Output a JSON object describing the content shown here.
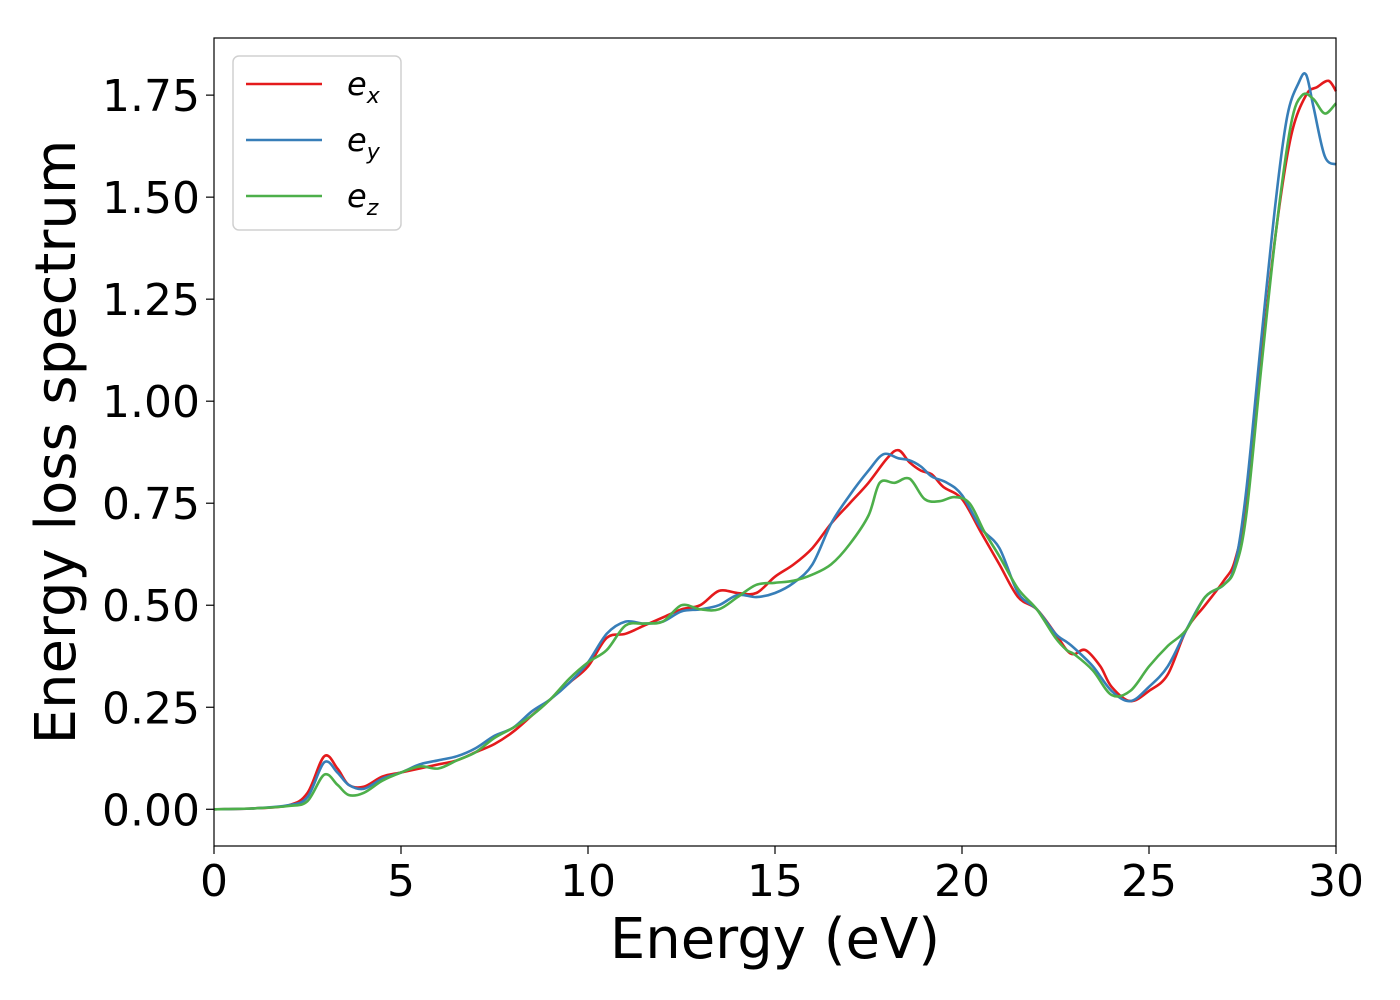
{
  "chart_data": {
    "type": "line",
    "title": "",
    "xlabel": "Energy (eV)",
    "ylabel": "Energy loss spectrum",
    "xlim": [
      0,
      30
    ],
    "ylim": [
      -0.09,
      1.89
    ],
    "xticks": [
      0,
      5,
      10,
      15,
      20,
      25,
      30
    ],
    "xtick_labels": [
      "0",
      "5",
      "10",
      "15",
      "20",
      "25",
      "30"
    ],
    "yticks": [
      0.0,
      0.25,
      0.5,
      0.75,
      1.0,
      1.25,
      1.5,
      1.75
    ],
    "ytick_labels": [
      "0.00",
      "0.25",
      "0.50",
      "0.75",
      "1.00",
      "1.25",
      "1.50",
      "1.75"
    ],
    "grid": false,
    "legend_position": "top-left",
    "series": [
      {
        "name_base": "e",
        "name_sub": "x",
        "color": "#e41a1c",
        "points": [
          [
            0,
            0
          ],
          [
            1,
            0.002
          ],
          [
            2,
            0.01
          ],
          [
            2.5,
            0.04
          ],
          [
            2.95,
            0.13
          ],
          [
            3.3,
            0.1
          ],
          [
            3.6,
            0.06
          ],
          [
            4,
            0.055
          ],
          [
            4.5,
            0.08
          ],
          [
            5,
            0.09
          ],
          [
            5.5,
            0.1
          ],
          [
            6,
            0.11
          ],
          [
            6.5,
            0.12
          ],
          [
            7,
            0.14
          ],
          [
            7.5,
            0.16
          ],
          [
            8,
            0.19
          ],
          [
            8.5,
            0.23
          ],
          [
            9,
            0.27
          ],
          [
            9.5,
            0.31
          ],
          [
            10,
            0.35
          ],
          [
            10.5,
            0.42
          ],
          [
            11,
            0.43
          ],
          [
            11.5,
            0.45
          ],
          [
            12,
            0.47
          ],
          [
            12.5,
            0.49
          ],
          [
            13,
            0.5
          ],
          [
            13.5,
            0.535
          ],
          [
            14,
            0.53
          ],
          [
            14.5,
            0.53
          ],
          [
            15,
            0.57
          ],
          [
            15.5,
            0.6
          ],
          [
            16,
            0.64
          ],
          [
            16.5,
            0.7
          ],
          [
            17,
            0.75
          ],
          [
            17.5,
            0.8
          ],
          [
            18,
            0.86
          ],
          [
            18.3,
            0.88
          ],
          [
            18.6,
            0.85
          ],
          [
            18.9,
            0.83
          ],
          [
            19.2,
            0.82
          ],
          [
            19.5,
            0.79
          ],
          [
            20,
            0.76
          ],
          [
            20.5,
            0.68
          ],
          [
            21,
            0.6
          ],
          [
            21.5,
            0.52
          ],
          [
            22,
            0.49
          ],
          [
            22.5,
            0.43
          ],
          [
            22.8,
            0.39
          ],
          [
            23,
            0.38
          ],
          [
            23.3,
            0.39
          ],
          [
            23.7,
            0.35
          ],
          [
            24,
            0.3
          ],
          [
            24.5,
            0.265
          ],
          [
            25,
            0.29
          ],
          [
            25.5,
            0.33
          ],
          [
            26,
            0.44
          ],
          [
            26.5,
            0.5
          ],
          [
            27,
            0.56
          ],
          [
            27.3,
            0.61
          ],
          [
            27.6,
            0.75
          ],
          [
            28,
            1.1
          ],
          [
            28.4,
            1.42
          ],
          [
            28.8,
            1.65
          ],
          [
            29.2,
            1.75
          ],
          [
            29.5,
            1.77
          ],
          [
            29.8,
            1.785
          ],
          [
            30,
            1.76
          ]
        ]
      },
      {
        "name_base": "e",
        "name_sub": "y",
        "color": "#377eb8",
        "points": [
          [
            0,
            0
          ],
          [
            1,
            0.002
          ],
          [
            2,
            0.01
          ],
          [
            2.5,
            0.03
          ],
          [
            2.95,
            0.115
          ],
          [
            3.3,
            0.09
          ],
          [
            3.6,
            0.06
          ],
          [
            4,
            0.05
          ],
          [
            4.5,
            0.075
          ],
          [
            5,
            0.09
          ],
          [
            5.5,
            0.11
          ],
          [
            6,
            0.12
          ],
          [
            6.5,
            0.13
          ],
          [
            7,
            0.15
          ],
          [
            7.5,
            0.18
          ],
          [
            8,
            0.2
          ],
          [
            8.5,
            0.24
          ],
          [
            9,
            0.27
          ],
          [
            9.5,
            0.31
          ],
          [
            10,
            0.36
          ],
          [
            10.5,
            0.43
          ],
          [
            11,
            0.46
          ],
          [
            11.5,
            0.455
          ],
          [
            12,
            0.46
          ],
          [
            12.5,
            0.485
          ],
          [
            13,
            0.49
          ],
          [
            13.5,
            0.5
          ],
          [
            14,
            0.525
          ],
          [
            14.5,
            0.52
          ],
          [
            15,
            0.53
          ],
          [
            15.5,
            0.555
          ],
          [
            16,
            0.6
          ],
          [
            16.5,
            0.7
          ],
          [
            17,
            0.77
          ],
          [
            17.5,
            0.83
          ],
          [
            17.9,
            0.87
          ],
          [
            18.3,
            0.86
          ],
          [
            18.6,
            0.855
          ],
          [
            18.9,
            0.84
          ],
          [
            19.2,
            0.815
          ],
          [
            19.6,
            0.8
          ],
          [
            20,
            0.77
          ],
          [
            20.5,
            0.69
          ],
          [
            21,
            0.64
          ],
          [
            21.5,
            0.53
          ],
          [
            22,
            0.49
          ],
          [
            22.5,
            0.43
          ],
          [
            22.8,
            0.41
          ],
          [
            23,
            0.395
          ],
          [
            23.5,
            0.35
          ],
          [
            24,
            0.29
          ],
          [
            24.5,
            0.265
          ],
          [
            25,
            0.3
          ],
          [
            25.5,
            0.35
          ],
          [
            26,
            0.44
          ],
          [
            26.5,
            0.52
          ],
          [
            27,
            0.55
          ],
          [
            27.3,
            0.6
          ],
          [
            27.6,
            0.78
          ],
          [
            28,
            1.15
          ],
          [
            28.4,
            1.5
          ],
          [
            28.7,
            1.7
          ],
          [
            29,
            1.78
          ],
          [
            29.2,
            1.8
          ],
          [
            29.4,
            1.72
          ],
          [
            29.7,
            1.6
          ],
          [
            30,
            1.58
          ]
        ]
      },
      {
        "name_base": "e",
        "name_sub": "z",
        "color": "#4daf4a",
        "points": [
          [
            0,
            0
          ],
          [
            1,
            0.002
          ],
          [
            2,
            0.008
          ],
          [
            2.5,
            0.02
          ],
          [
            2.95,
            0.085
          ],
          [
            3.3,
            0.06
          ],
          [
            3.6,
            0.035
          ],
          [
            4,
            0.04
          ],
          [
            4.5,
            0.07
          ],
          [
            5,
            0.09
          ],
          [
            5.5,
            0.105
          ],
          [
            6,
            0.1
          ],
          [
            6.5,
            0.12
          ],
          [
            7,
            0.14
          ],
          [
            7.5,
            0.175
          ],
          [
            8,
            0.2
          ],
          [
            8.5,
            0.23
          ],
          [
            9,
            0.27
          ],
          [
            9.5,
            0.32
          ],
          [
            10,
            0.36
          ],
          [
            10.5,
            0.39
          ],
          [
            11,
            0.45
          ],
          [
            11.5,
            0.455
          ],
          [
            12,
            0.46
          ],
          [
            12.5,
            0.5
          ],
          [
            13,
            0.49
          ],
          [
            13.5,
            0.49
          ],
          [
            14,
            0.52
          ],
          [
            14.5,
            0.55
          ],
          [
            15,
            0.555
          ],
          [
            15.5,
            0.56
          ],
          [
            16,
            0.575
          ],
          [
            16.5,
            0.6
          ],
          [
            17,
            0.65
          ],
          [
            17.5,
            0.72
          ],
          [
            17.8,
            0.8
          ],
          [
            18.2,
            0.8
          ],
          [
            18.6,
            0.81
          ],
          [
            19,
            0.76
          ],
          [
            19.4,
            0.755
          ],
          [
            19.8,
            0.765
          ],
          [
            20.2,
            0.75
          ],
          [
            20.6,
            0.68
          ],
          [
            21,
            0.62
          ],
          [
            21.5,
            0.54
          ],
          [
            22,
            0.49
          ],
          [
            22.5,
            0.42
          ],
          [
            22.8,
            0.39
          ],
          [
            23,
            0.38
          ],
          [
            23.5,
            0.34
          ],
          [
            24,
            0.28
          ],
          [
            24.5,
            0.29
          ],
          [
            25,
            0.35
          ],
          [
            25.5,
            0.4
          ],
          [
            26,
            0.44
          ],
          [
            26.5,
            0.52
          ],
          [
            27,
            0.55
          ],
          [
            27.3,
            0.59
          ],
          [
            27.6,
            0.72
          ],
          [
            28,
            1.08
          ],
          [
            28.4,
            1.42
          ],
          [
            28.8,
            1.68
          ],
          [
            29.1,
            1.75
          ],
          [
            29.4,
            1.74
          ],
          [
            29.7,
            1.705
          ],
          [
            30,
            1.73
          ]
        ]
      }
    ]
  }
}
